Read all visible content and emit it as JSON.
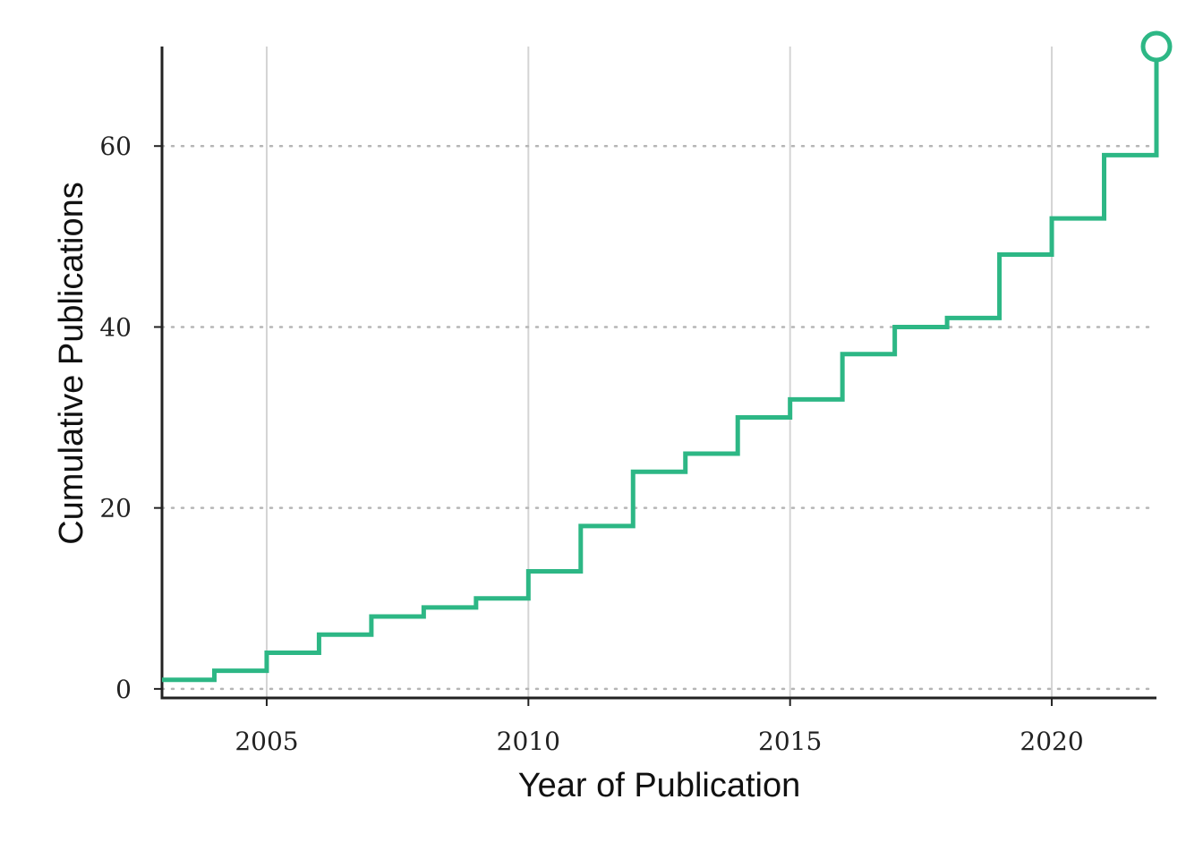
{
  "chart_data": {
    "type": "line",
    "step": "post",
    "xlabel": "Year of Publication",
    "ylabel": "Cumulative Publications",
    "xlim": [
      2003,
      2022
    ],
    "ylim": [
      -1,
      71
    ],
    "x_ticks": [
      2005,
      2010,
      2015,
      2020
    ],
    "x_tick_labels": [
      "2005",
      "2010",
      "2015",
      "2020"
    ],
    "y_ticks": [
      0,
      20,
      40,
      60
    ],
    "y_tick_labels": [
      "0",
      "20",
      "40",
      "60"
    ],
    "grid": {
      "vertical": "solid",
      "horizontal": "dotted"
    },
    "series": [
      {
        "color": "#2db785",
        "x": [
          2003,
          2004,
          2005,
          2006,
          2007,
          2008,
          2009,
          2010,
          2011,
          2012,
          2013,
          2014,
          2015,
          2016,
          2017,
          2018,
          2019,
          2020,
          2021,
          2022
        ],
        "y": [
          1,
          2,
          4,
          6,
          8,
          9,
          10,
          13,
          18,
          24,
          26,
          30,
          32,
          37,
          40,
          41,
          48,
          52,
          59,
          71
        ],
        "end_marker": "open-circle"
      }
    ]
  }
}
